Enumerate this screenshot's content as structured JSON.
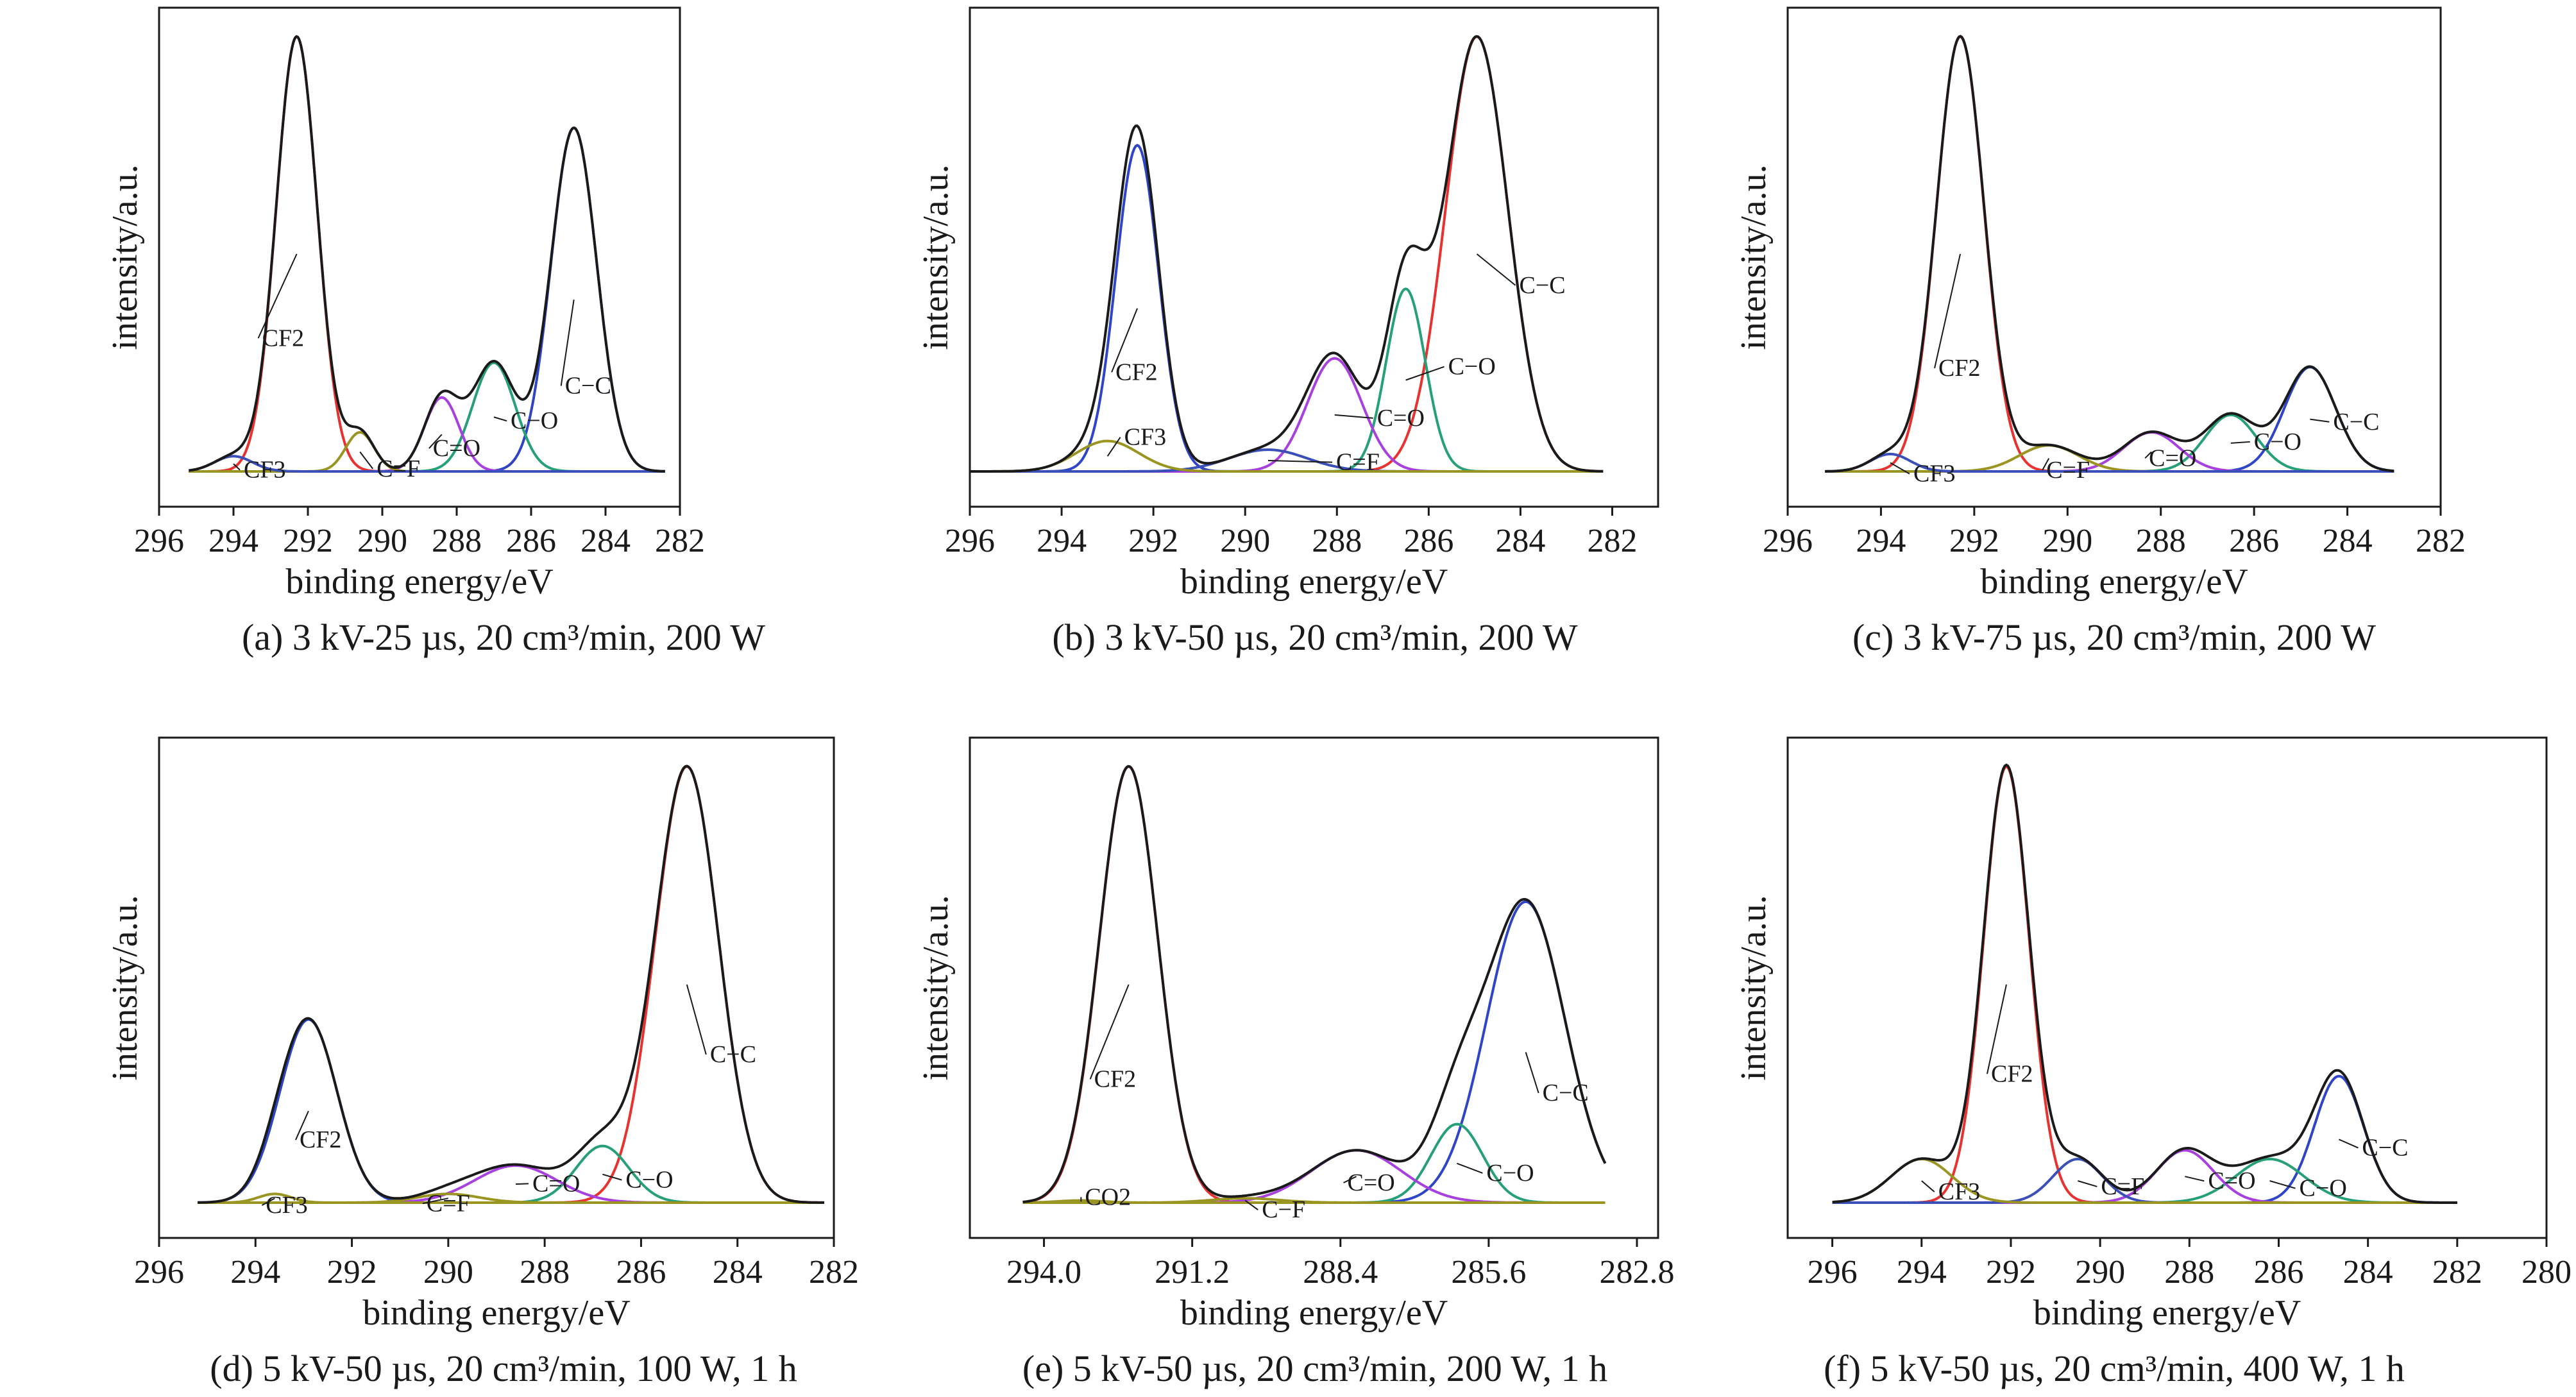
{
  "figure": {
    "panels": [
      {
        "caption": "(a) 3 kV-25 µs, 20 cm³/min, 200 W"
      },
      {
        "caption": "(b) 3 kV-50 µs, 20 cm³/min, 200 W"
      },
      {
        "caption": "(c) 3 kV-75 µs, 20 cm³/min, 200 W"
      },
      {
        "caption": "(d) 5 kV-50 µs, 20 cm³/min, 100 W, 1 h"
      },
      {
        "caption": "(e) 5 kV-50 µs, 20 cm³/min, 200 W, 1 h"
      },
      {
        "caption": "(f) 5 kV-50 µs, 20 cm³/min, 400 W, 1 h"
      }
    ]
  },
  "colors": {
    "envelope": "#1a1a1a",
    "CF2": "#e8322f",
    "C-C": "#2f45c8",
    "C-O": "#26a079",
    "C=O": "#a840e0",
    "CF3": "#3a4fb8",
    "C=F": "#9a9420",
    "baseline": "#2a2ab0"
  },
  "chart_data": [
    {
      "type": "line",
      "xlabel": "binding energy/eV",
      "ylabel": "intensity/a.u.",
      "xlim": [
        296,
        282
      ],
      "x_reversed": true,
      "xticks": [
        296,
        294,
        292,
        290,
        288,
        286,
        284,
        282
      ],
      "xtick_labels": [
        "296",
        "294",
        "292",
        "290",
        "288",
        "286",
        "284",
        "282"
      ],
      "y_ticks_shown": false,
      "fit_range": [
        295.2,
        282.4
      ],
      "series": [
        {
          "name": "CF2",
          "color_key": "CF2",
          "center": 292.3,
          "amplitude": 1.0,
          "fwhm": 1.3
        },
        {
          "name": "C-C",
          "color_key": "C-C",
          "center": 284.85,
          "amplitude": 0.79,
          "fwhm": 1.45
        },
        {
          "name": "C-O",
          "color_key": "C-O",
          "center": 287.0,
          "amplitude": 0.25,
          "fwhm": 1.35
        },
        {
          "name": "C=O",
          "color_key": "C=O",
          "center": 288.4,
          "amplitude": 0.17,
          "fwhm": 1.1
        },
        {
          "name": "C=F",
          "color_key": "C=F",
          "center": 290.6,
          "amplitude": 0.09,
          "fwhm": 0.9
        },
        {
          "name": "CF3",
          "color_key": "CF3",
          "center": 294.0,
          "amplitude": 0.035,
          "fwhm": 1.2
        }
      ],
      "labels": [
        "CF2",
        "CF3",
        "C=F",
        "C=O",
        "C−O",
        "C−C"
      ]
    },
    {
      "type": "line",
      "xlabel": "binding energy/eV",
      "ylabel": "intensity/a.u.",
      "xlim": [
        296,
        281
      ],
      "x_reversed": true,
      "xticks": [
        296,
        294,
        292,
        290,
        288,
        286,
        284,
        282
      ],
      "xtick_labels": [
        "296",
        "294",
        "292",
        "290",
        "288",
        "286",
        "284",
        "282"
      ],
      "y_ticks_shown": false,
      "fit_range": [
        296,
        282.2
      ],
      "series": [
        {
          "name": "CF2",
          "color_key": "C-C",
          "center": 292.35,
          "amplitude": 0.75,
          "fwhm": 1.1
        },
        {
          "name": "C-C",
          "color_key": "CF2",
          "center": 284.95,
          "amplitude": 1.0,
          "fwhm": 1.6
        },
        {
          "name": "C-O",
          "color_key": "C-O",
          "center": 286.5,
          "amplitude": 0.42,
          "fwhm": 1.0
        },
        {
          "name": "C=O",
          "color_key": "C=O",
          "center": 288.05,
          "amplitude": 0.26,
          "fwhm": 1.4
        },
        {
          "name": "C=F",
          "color_key": "CF3",
          "center": 289.5,
          "amplitude": 0.05,
          "fwhm": 2.0
        },
        {
          "name": "CF3",
          "color_key": "C=F",
          "center": 293.0,
          "amplitude": 0.07,
          "fwhm": 1.6
        }
      ],
      "labels": [
        "CF2",
        "CF3",
        "C=F",
        "C=O",
        "C−O",
        "C−C"
      ]
    },
    {
      "type": "line",
      "xlabel": "binding energy/eV",
      "ylabel": "intensity/a.u.",
      "xlim": [
        296,
        282
      ],
      "x_reversed": true,
      "xticks": [
        296,
        294,
        292,
        290,
        288,
        286,
        284,
        282
      ],
      "xtick_labels": [
        "296",
        "294",
        "292",
        "290",
        "288",
        "286",
        "284",
        "282"
      ],
      "y_ticks_shown": false,
      "fit_range": [
        295.2,
        283.0
      ],
      "series": [
        {
          "name": "CF2",
          "color_key": "CF2",
          "center": 292.3,
          "amplitude": 1.0,
          "fwhm": 1.2
        },
        {
          "name": "C-C",
          "color_key": "C-C",
          "center": 284.8,
          "amplitude": 0.24,
          "fwhm": 1.3
        },
        {
          "name": "C-O",
          "color_key": "C-O",
          "center": 286.5,
          "amplitude": 0.13,
          "fwhm": 1.3
        },
        {
          "name": "C=O",
          "color_key": "C=O",
          "center": 288.2,
          "amplitude": 0.09,
          "fwhm": 1.4
        },
        {
          "name": "C=F",
          "color_key": "C=F",
          "center": 290.4,
          "amplitude": 0.06,
          "fwhm": 1.5
        },
        {
          "name": "CF3",
          "color_key": "CF3",
          "center": 293.8,
          "amplitude": 0.04,
          "fwhm": 1.0
        }
      ],
      "labels": [
        "CF2",
        "CF3",
        "C=F",
        "C=O",
        "C−O",
        "C−C"
      ]
    },
    {
      "type": "line",
      "xlabel": "binding energy/eV",
      "ylabel": "intensity/a.u.",
      "xlim": [
        296,
        282
      ],
      "x_reversed": true,
      "xticks": [
        296,
        294,
        292,
        290,
        288,
        286,
        284,
        282
      ],
      "xtick_labels": [
        "296",
        "294",
        "292",
        "290",
        "288",
        "286",
        "284",
        "282"
      ],
      "y_ticks_shown": false,
      "fit_range": [
        295.2,
        282.2
      ],
      "series": [
        {
          "name": "CF2",
          "color_key": "C-C",
          "center": 292.9,
          "amplitude": 0.42,
          "fwhm": 1.4
        },
        {
          "name": "C-C",
          "color_key": "CF2",
          "center": 285.05,
          "amplitude": 1.0,
          "fwhm": 1.55
        },
        {
          "name": "C-O",
          "color_key": "C-O",
          "center": 286.8,
          "amplitude": 0.13,
          "fwhm": 1.3
        },
        {
          "name": "C=O",
          "color_key": "C=O",
          "center": 288.6,
          "amplitude": 0.085,
          "fwhm": 2.0
        },
        {
          "name": "C=F",
          "color_key": "C=F",
          "center": 290.0,
          "amplitude": 0.02,
          "fwhm": 1.5
        },
        {
          "name": "CF3",
          "color_key": "C=F",
          "center": 293.6,
          "amplitude": 0.02,
          "fwhm": 0.8
        }
      ],
      "labels": [
        "CF2",
        "CF3",
        "C=F",
        "C=O",
        "C−O",
        "C−C"
      ]
    },
    {
      "type": "line",
      "xlabel": "binding energy/eV",
      "ylabel": "intensity/a.u.",
      "xlim": [
        295.4,
        282.4
      ],
      "x_reversed": true,
      "xticks": [
        294.0,
        291.2,
        288.4,
        285.6,
        282.8
      ],
      "xtick_labels": [
        "294.0",
        "291.2",
        "288.4",
        "285.6",
        "282.8"
      ],
      "y_ticks_shown": false,
      "fit_range": [
        294.4,
        283.4
      ],
      "series": [
        {
          "name": "CF2",
          "color_key": "CF2",
          "center": 292.4,
          "amplitude": 1.0,
          "fwhm": 1.3
        },
        {
          "name": "C-C",
          "color_key": "C-C",
          "center": 284.9,
          "amplitude": 0.69,
          "fwhm": 1.75
        },
        {
          "name": "C-O",
          "color_key": "C-O",
          "center": 286.2,
          "amplitude": 0.18,
          "fwhm": 1.15
        },
        {
          "name": "C=O",
          "color_key": "C=O",
          "center": 288.1,
          "amplitude": 0.12,
          "fwhm": 2.0
        },
        {
          "name": "C−F",
          "color_key": "C=F",
          "center": 290.2,
          "amplitude": 0.01,
          "fwhm": 1.5
        },
        {
          "name": "CO2",
          "color_key": "C=F",
          "center": 293.3,
          "amplitude": 0.005,
          "fwhm": 1.0
        }
      ],
      "labels": [
        "CF2",
        "CO2",
        "C−F",
        "C=O",
        "C−O",
        "C−C"
      ]
    },
    {
      "type": "line",
      "xlabel": "binding energy/eV",
      "ylabel": "intensity/a.u.",
      "xlim": [
        297,
        280
      ],
      "x_reversed": true,
      "xticks": [
        296,
        294,
        292,
        290,
        288,
        286,
        284,
        282,
        280
      ],
      "xtick_labels": [
        "296",
        "294",
        "292",
        "290",
        "288",
        "286",
        "284",
        "282",
        "280"
      ],
      "y_ticks_shown": false,
      "fit_range": [
        296.0,
        282.0
      ],
      "series": [
        {
          "name": "CF2",
          "color_key": "CF2",
          "center": 292.1,
          "amplitude": 1.0,
          "fwhm": 1.2
        },
        {
          "name": "C-C",
          "color_key": "C-C",
          "center": 284.65,
          "amplitude": 0.29,
          "fwhm": 1.3
        },
        {
          "name": "C-O",
          "color_key": "C-O",
          "center": 286.2,
          "amplitude": 0.1,
          "fwhm": 1.8
        },
        {
          "name": "C=O",
          "color_key": "C=O",
          "center": 288.1,
          "amplitude": 0.12,
          "fwhm": 1.5
        },
        {
          "name": "C=F",
          "color_key": "CF3",
          "center": 290.5,
          "amplitude": 0.1,
          "fwhm": 1.3
        },
        {
          "name": "CF3",
          "color_key": "C=F",
          "center": 294.0,
          "amplitude": 0.1,
          "fwhm": 1.6
        }
      ],
      "labels": [
        "CF2",
        "CF3",
        "C=F",
        "C=O",
        "C−O",
        "C−C"
      ]
    }
  ]
}
